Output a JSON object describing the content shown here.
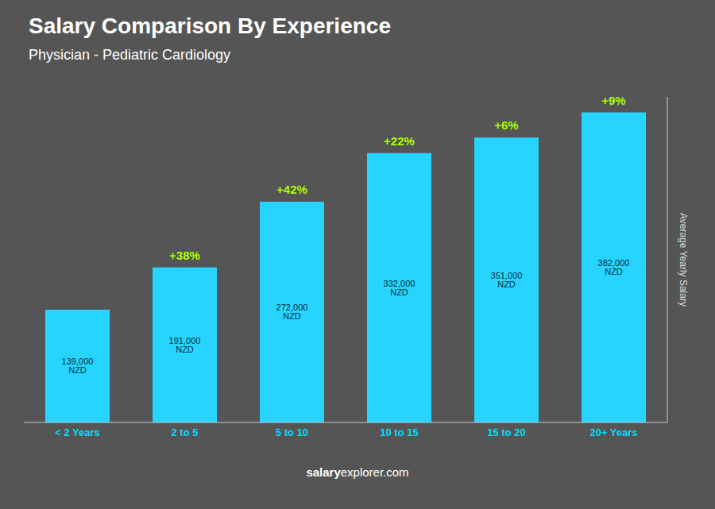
{
  "chart_data": {
    "type": "bar",
    "title": "Salary Comparison By Experience",
    "subtitle": "Physician - Pediatric Cardiology",
    "categories": [
      "< 2 Years",
      "2 to 5",
      "5 to 10",
      "10 to 15",
      "15 to 20",
      "20+ Years"
    ],
    "values": [
      139000,
      191000,
      272000,
      332000,
      351000,
      382000
    ],
    "value_labels": [
      "139,000 NZD",
      "191,000 NZD",
      "272,000 NZD",
      "332,000 NZD",
      "351,000 NZD",
      "382,000 NZD"
    ],
    "data_labels": true,
    "color": "#26d4ff",
    "ylabel": "Average Yearly Salary",
    "ylim": [
      0,
      401100
    ],
    "tick_labels": "x",
    "grid": false,
    "annotations": [
      {
        "text": "+38%",
        "from": "< 2 Years",
        "to": "2 to 5"
      },
      {
        "text": "+42%",
        "from": "2 to 5",
        "to": "5 to 10"
      },
      {
        "text": "+22%",
        "from": "5 to 10",
        "to": "10 to 15"
      },
      {
        "text": "+6%",
        "from": "10 to 15",
        "to": "15 to 20"
      },
      {
        "text": "+9%",
        "from": "15 to 20",
        "to": "20+ Years"
      }
    ],
    "watermark": [
      "salary",
      "explorer.com"
    ]
  }
}
